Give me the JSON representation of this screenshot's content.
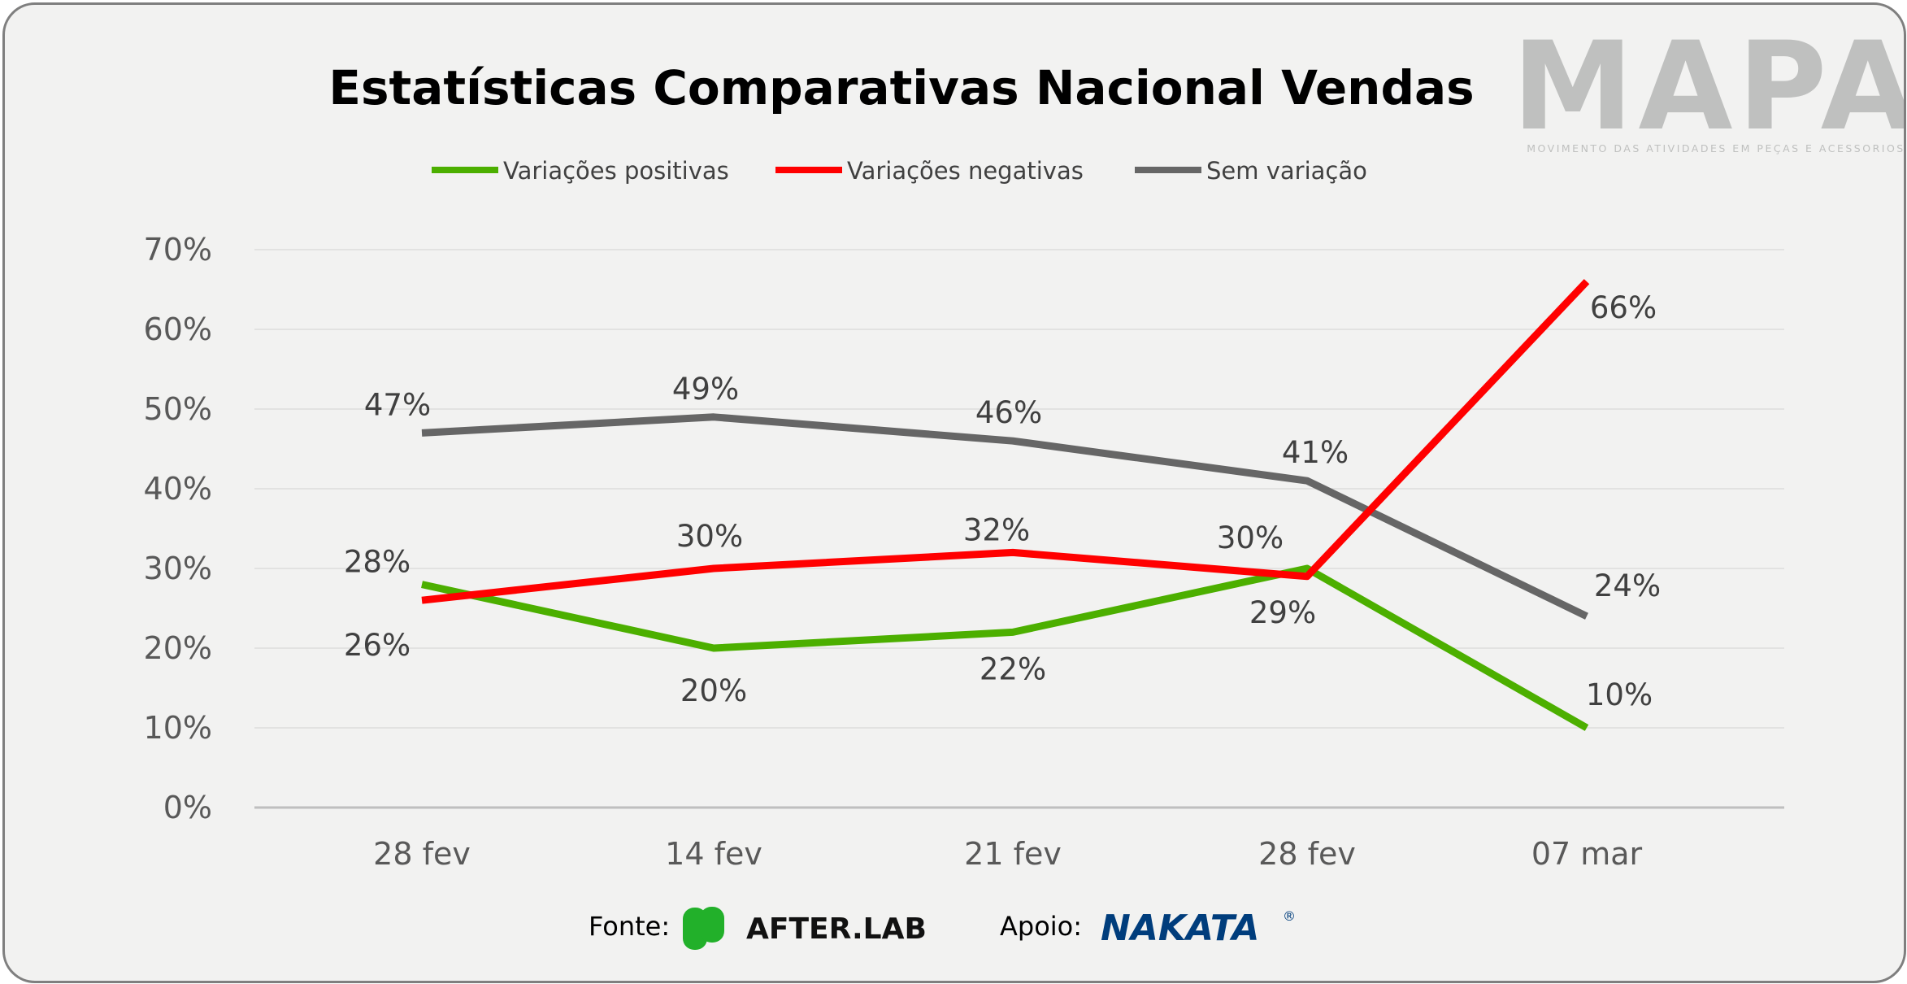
{
  "chart_data": {
    "type": "line",
    "title": "Estatísticas Comparativas Nacional Vendas",
    "categories": [
      "28 fev",
      "14 fev",
      "21 fev",
      "28 fev",
      "07 mar"
    ],
    "ylim": [
      0,
      70
    ],
    "yticks": [
      "0%",
      "10%",
      "20%",
      "30%",
      "40%",
      "50%",
      "60%",
      "70%"
    ],
    "grid": true,
    "legend_position": "top",
    "series": [
      {
        "name": "Variações positivas",
        "color": "#4caf00",
        "values": [
          28,
          20,
          22,
          30,
          10
        ],
        "labels": [
          "28%",
          "20%",
          "22%",
          "30%",
          "10%"
        ]
      },
      {
        "name": "Variações negativas",
        "color": "#ff0000",
        "values": [
          26,
          30,
          32,
          29,
          66
        ],
        "labels": [
          "26%",
          "30%",
          "32%",
          "29%",
          "66%"
        ]
      },
      {
        "name": "Sem variação",
        "color": "#666666",
        "values": [
          47,
          49,
          46,
          41,
          24
        ],
        "labels": [
          "47%",
          "49%",
          "46%",
          "41%",
          "24%"
        ]
      }
    ]
  },
  "logo": {
    "name": "MAPA",
    "subtitle": "MOVIMENTO DAS ATIVIDADES EM PEÇAS E ACESSORIOS"
  },
  "footer": {
    "source_label": "Fonte:",
    "source_name": "AFTER.LAB",
    "support_label": "Apoio:",
    "support_name": "NAKATA"
  }
}
